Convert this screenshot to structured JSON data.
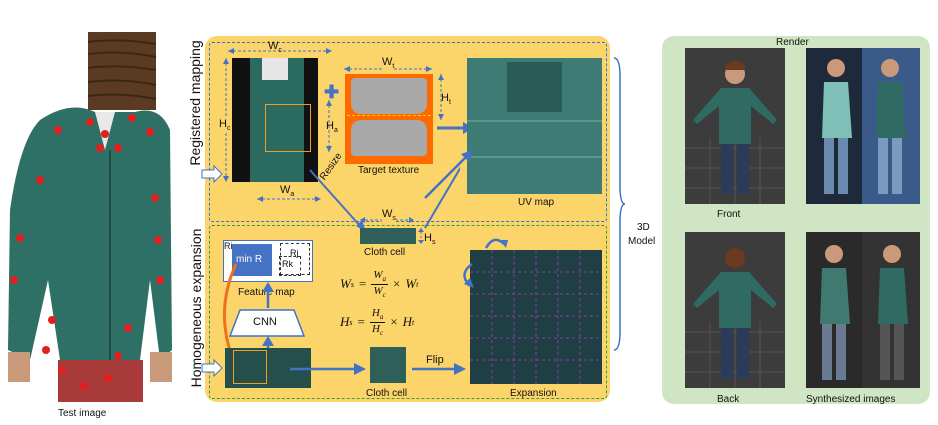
{
  "test_image": {
    "caption": "Test image"
  },
  "sections": {
    "registered": "Registered mapping",
    "homogeneous": "Homogeneous expansion"
  },
  "registered": {
    "wc": "W",
    "wc_sub": "c",
    "hc": "H",
    "hc_sub": "c",
    "wa": "W",
    "wa_sub": "a",
    "ha": "H",
    "ha_sub": "a",
    "wt": "W",
    "wt_sub": "t",
    "ht": "H",
    "ht_sub": "t",
    "resize": "Resize",
    "target_texture": "Target texture",
    "uv_map": "UV map"
  },
  "cloth_cell_top": {
    "ws": "W",
    "ws_sub": "s",
    "hs": "H",
    "hs_sub": "s",
    "label": "Cloth cell"
  },
  "homogeneous": {
    "ri": "Ri",
    "min_r": "min R",
    "rj": "Rj",
    "rk": "Rk",
    "feature_map": "Feature map",
    "cnn": "CNN",
    "cloth_cell": "Cloth cell",
    "flip": "Flip",
    "expansion": "Expansion"
  },
  "equations": {
    "eq1_lhs": "W",
    "eq1_lhs_sub": "s",
    "eq1_num": "W",
    "eq1_num_sub": "a",
    "eq1_den": "W",
    "eq1_den_sub": "c",
    "eq1_rhs": "W",
    "eq1_rhs_sub": "t",
    "eq2_lhs": "H",
    "eq2_lhs_sub": "s",
    "eq2_num": "H",
    "eq2_num_sub": "a",
    "eq2_den": "H",
    "eq2_den_sub": "c",
    "eq2_rhs": "H",
    "eq2_rhs_sub": "t"
  },
  "model": {
    "line1": "3D",
    "line2": "Model"
  },
  "render": {
    "title": "Render",
    "front": "Front",
    "back": "Back",
    "synth": "Synthesized images"
  },
  "colors": {
    "main_panel": "#fbd46a",
    "render_panel": "#cfe5c4",
    "arrow": "#4472c4",
    "keypoint": "#e02020",
    "orange": "#f07020"
  }
}
